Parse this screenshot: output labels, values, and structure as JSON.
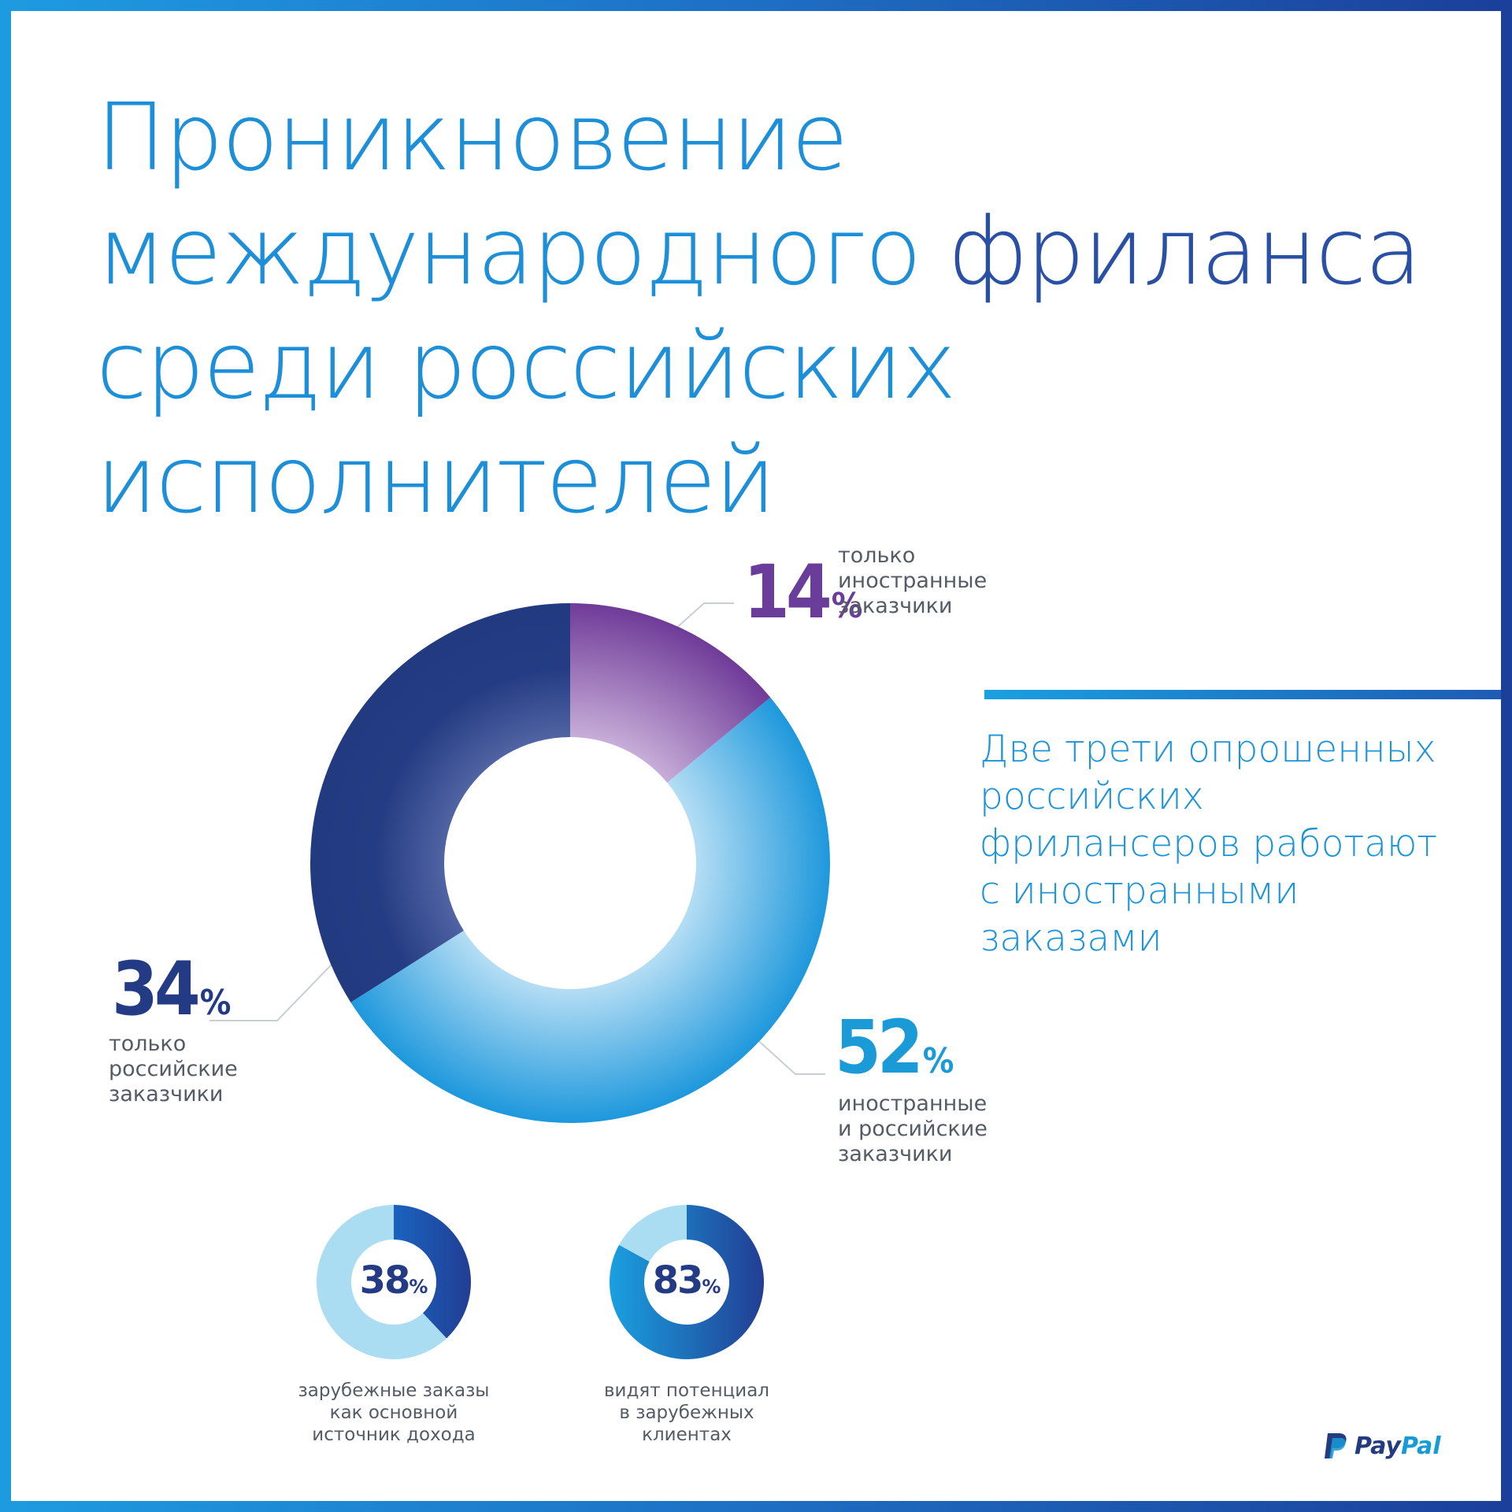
{
  "title": {
    "line1": "Проникновение",
    "line2a": "международного",
    "line2b": "фриланса",
    "line3": "среди российских",
    "line4": "исполнителей"
  },
  "side_text": {
    "line1": "Две трети опрошенных",
    "line2": "российских",
    "line3": "фрилансеров работают",
    "line4": "с иностранными",
    "line5": "заказами"
  },
  "percent_sign": "%",
  "chart_data": [
    {
      "type": "pie",
      "categories": [
        "только иностранные заказчики",
        "иностранные и российские заказчики",
        "только российские заказчики"
      ],
      "values": [
        14,
        52,
        34
      ],
      "unit": "%",
      "colors": [
        "#7b4aa3",
        "#2aa3e0",
        "#233b85"
      ],
      "labels": {
        "foreign": {
          "value": "14",
          "lines": [
            "только",
            "иностранные",
            "заказчики"
          ]
        },
        "both": {
          "value": "52",
          "lines": [
            "иностранные",
            "и российские",
            "заказчики"
          ]
        },
        "russian": {
          "value": "34",
          "lines": [
            "только",
            "российские",
            "заказчики"
          ]
        }
      }
    },
    {
      "type": "pie",
      "values": [
        38
      ],
      "unit": "%",
      "value_text": "38",
      "caption": [
        "зарубежные заказы",
        "как основной",
        "источник дохода"
      ],
      "colors": [
        "#1f4ea8",
        "#aadcf2"
      ]
    },
    {
      "type": "pie",
      "values": [
        83
      ],
      "unit": "%",
      "value_text": "83",
      "caption": [
        "видят потенциал",
        "в зарубежных",
        "клиентах"
      ],
      "colors": [
        "#1d67c4",
        "#aadcf2"
      ]
    }
  ],
  "logo": {
    "text_a": "Pay",
    "text_b": "Pal",
    "color_dark": "#253b80",
    "color_light": "#179bd7"
  }
}
